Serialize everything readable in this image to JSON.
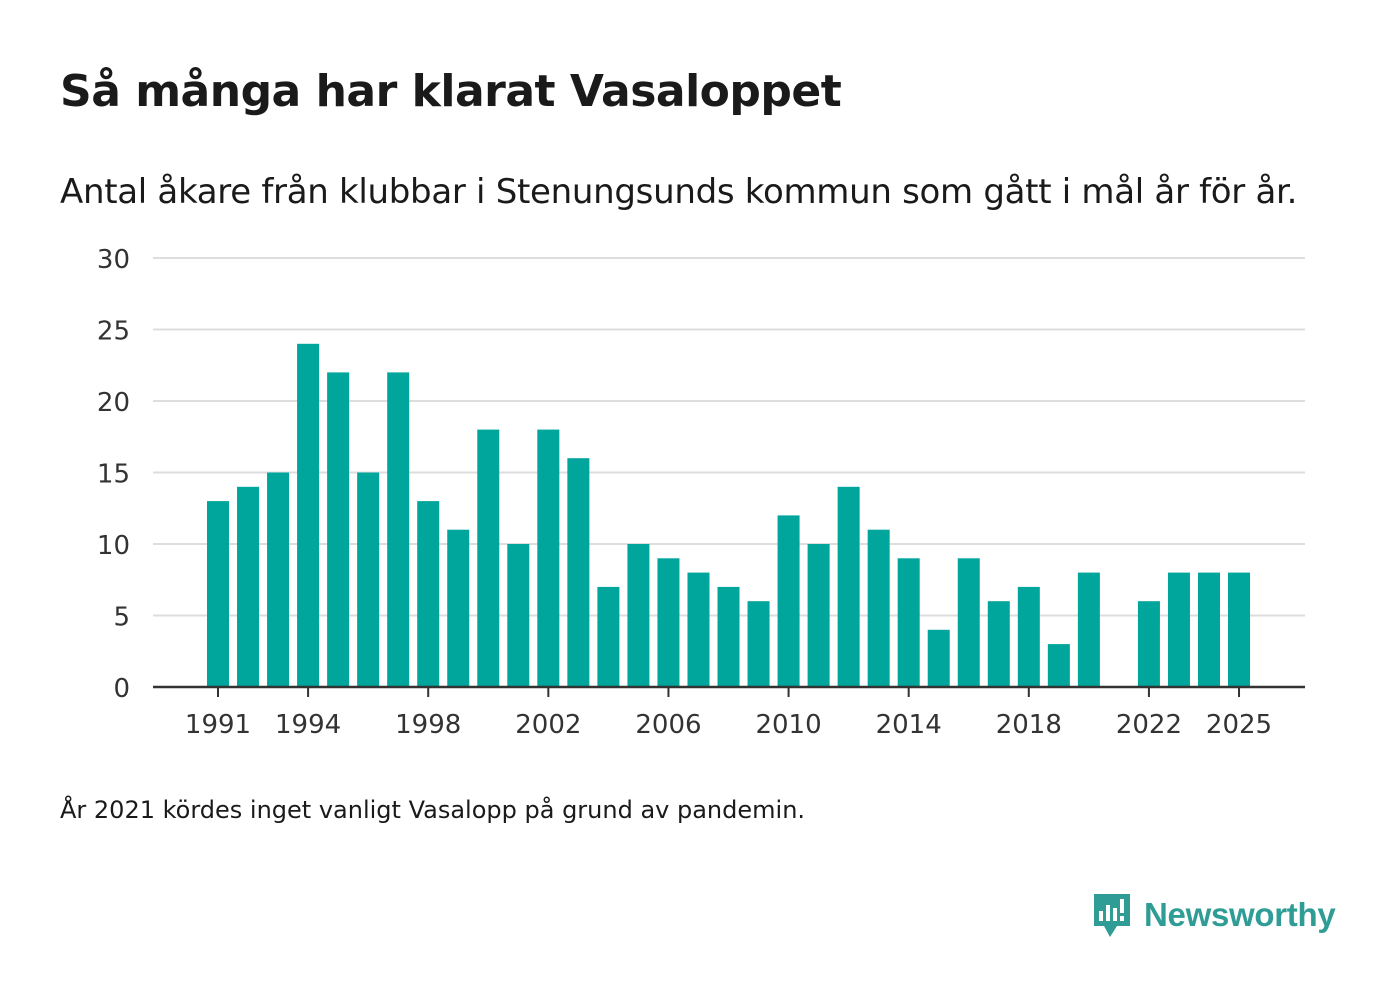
{
  "header": {
    "title": "Så många har klarat Vasaloppet",
    "subtitle": "Antal åkare från klubbar i Stenungsunds kommun som gått i mål år för år."
  },
  "footer": {
    "note": "År 2021 kördes inget vanligt Vasalopp på grund av pandemin."
  },
  "brand": {
    "name": "Newsworthy",
    "color": "#2f9d96",
    "icon": "newsworthy-logo-icon"
  },
  "chart_data": {
    "type": "bar",
    "title": "Så många har klarat Vasaloppet",
    "subtitle": "Antal åkare från klubbar i Stenungsunds kommun som gått i mål år för år.",
    "xlabel": "",
    "ylabel": "",
    "ylim": [
      0,
      30
    ],
    "yticks": [
      0,
      5,
      10,
      15,
      20,
      25,
      30
    ],
    "xticks": [
      1991,
      1994,
      1998,
      2002,
      2006,
      2010,
      2014,
      2018,
      2022,
      2025
    ],
    "grid": true,
    "bar_color": "#00a59b",
    "categories": [
      1991,
      1992,
      1993,
      1994,
      1995,
      1996,
      1997,
      1998,
      1999,
      2000,
      2001,
      2002,
      2003,
      2004,
      2005,
      2006,
      2007,
      2008,
      2009,
      2010,
      2011,
      2012,
      2013,
      2014,
      2015,
      2016,
      2017,
      2018,
      2019,
      2020,
      2021,
      2022,
      2023,
      2024,
      2025
    ],
    "values": [
      13,
      14,
      15,
      24,
      22,
      15,
      22,
      13,
      11,
      18,
      10,
      18,
      16,
      7,
      10,
      9,
      8,
      7,
      6,
      12,
      10,
      14,
      11,
      9,
      4,
      9,
      6,
      7,
      3,
      8,
      null,
      6,
      8,
      8,
      8
    ]
  }
}
